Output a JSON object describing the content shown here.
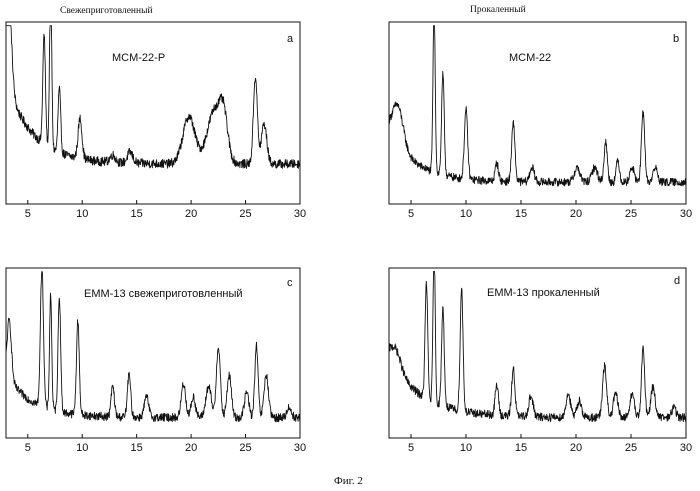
{
  "headers": {
    "fresh": "Свежеприготовленный",
    "calcined": "Прокаленный"
  },
  "figure_caption": "Фиг. 2",
  "colors": {
    "line": "#111111",
    "frame": "#111111",
    "background": "#ffffff"
  },
  "chart_data": [
    {
      "type": "line",
      "panel_letter": "a",
      "sample_label": "MCM-22-P",
      "xlim": [
        3,
        30
      ],
      "xticks": [
        5,
        10,
        15,
        20,
        25,
        30
      ],
      "xticks_text": [
        "5",
        "10",
        "15",
        "20",
        "25",
        "30"
      ],
      "baseline": 0.22,
      "start_intensity": 0.45,
      "decay_width": 2.5,
      "noise": 0.025,
      "peaks": [
        {
          "x": 3.2,
          "y": 0.58,
          "w": 0.28
        },
        {
          "x": 6.5,
          "y": 0.6,
          "w": 0.12
        },
        {
          "x": 7.1,
          "y": 0.9,
          "w": 0.1
        },
        {
          "x": 7.9,
          "y": 0.35,
          "w": 0.12
        },
        {
          "x": 9.8,
          "y": 0.22,
          "w": 0.18
        },
        {
          "x": 12.8,
          "y": 0.04,
          "w": 0.25
        },
        {
          "x": 14.4,
          "y": 0.06,
          "w": 0.25
        },
        {
          "x": 19.8,
          "y": 0.26,
          "w": 0.55
        },
        {
          "x": 22.2,
          "y": 0.3,
          "w": 0.7
        },
        {
          "x": 23.0,
          "y": 0.18,
          "w": 0.35
        },
        {
          "x": 25.9,
          "y": 0.48,
          "w": 0.18
        },
        {
          "x": 26.7,
          "y": 0.22,
          "w": 0.25
        }
      ]
    },
    {
      "type": "line",
      "panel_letter": "b",
      "sample_label": "MCM-22",
      "xlim": [
        3,
        30
      ],
      "xticks": [
        5,
        10,
        15,
        20,
        25,
        30
      ],
      "xticks_text": [
        "5",
        "10",
        "15",
        "20",
        "25",
        "30"
      ],
      "baseline": 0.12,
      "start_intensity": 0.28,
      "decay_width": 2.5,
      "noise": 0.022,
      "peaks": [
        {
          "x": 3.8,
          "y": 0.22,
          "w": 0.5
        },
        {
          "x": 7.1,
          "y": 0.92,
          "w": 0.1
        },
        {
          "x": 7.9,
          "y": 0.55,
          "w": 0.12
        },
        {
          "x": 10.0,
          "y": 0.38,
          "w": 0.15
        },
        {
          "x": 12.8,
          "y": 0.1,
          "w": 0.15
        },
        {
          "x": 14.3,
          "y": 0.32,
          "w": 0.15
        },
        {
          "x": 16.0,
          "y": 0.08,
          "w": 0.2
        },
        {
          "x": 20.1,
          "y": 0.08,
          "w": 0.25
        },
        {
          "x": 21.7,
          "y": 0.08,
          "w": 0.25
        },
        {
          "x": 22.7,
          "y": 0.22,
          "w": 0.15
        },
        {
          "x": 23.8,
          "y": 0.12,
          "w": 0.15
        },
        {
          "x": 25.1,
          "y": 0.08,
          "w": 0.2
        },
        {
          "x": 26.1,
          "y": 0.38,
          "w": 0.15
        },
        {
          "x": 27.2,
          "y": 0.08,
          "w": 0.2
        }
      ]
    },
    {
      "type": "line",
      "panel_letter": "c",
      "sample_label": "EMM-13 свежеприготовленный",
      "xlim": [
        3,
        30
      ],
      "xticks": [
        5,
        10,
        15,
        20,
        25,
        30
      ],
      "xticks_text": [
        "5",
        "10",
        "15",
        "20",
        "25",
        "30"
      ],
      "baseline": 0.12,
      "start_intensity": 0.25,
      "decay_width": 2.5,
      "noise": 0.025,
      "peaks": [
        {
          "x": 3.3,
          "y": 0.35,
          "w": 0.2
        },
        {
          "x": 6.3,
          "y": 0.82,
          "w": 0.14
        },
        {
          "x": 7.1,
          "y": 0.68,
          "w": 0.1
        },
        {
          "x": 7.9,
          "y": 0.68,
          "w": 0.12
        },
        {
          "x": 9.6,
          "y": 0.55,
          "w": 0.13
        },
        {
          "x": 12.8,
          "y": 0.18,
          "w": 0.15
        },
        {
          "x": 14.3,
          "y": 0.25,
          "w": 0.15
        },
        {
          "x": 15.9,
          "y": 0.12,
          "w": 0.2
        },
        {
          "x": 19.3,
          "y": 0.2,
          "w": 0.2
        },
        {
          "x": 20.2,
          "y": 0.12,
          "w": 0.2
        },
        {
          "x": 21.6,
          "y": 0.18,
          "w": 0.25
        },
        {
          "x": 22.5,
          "y": 0.42,
          "w": 0.18
        },
        {
          "x": 23.5,
          "y": 0.25,
          "w": 0.2
        },
        {
          "x": 25.1,
          "y": 0.15,
          "w": 0.2
        },
        {
          "x": 26.0,
          "y": 0.42,
          "w": 0.15
        },
        {
          "x": 26.9,
          "y": 0.25,
          "w": 0.2
        },
        {
          "x": 29.0,
          "y": 0.06,
          "w": 0.2
        }
      ]
    },
    {
      "type": "line",
      "panel_letter": "d",
      "sample_label": "EMM-13 прокаленный",
      "xlim": [
        3,
        30
      ],
      "xticks": [
        5,
        10,
        15,
        20,
        25,
        30
      ],
      "xticks_text": [
        "5",
        "10",
        "15",
        "20",
        "25",
        "30"
      ],
      "baseline": 0.12,
      "start_intensity": 0.35,
      "decay_width": 3.0,
      "noise": 0.025,
      "peaks": [
        {
          "x": 3.6,
          "y": 0.12,
          "w": 0.5
        },
        {
          "x": 6.4,
          "y": 0.68,
          "w": 0.12
        },
        {
          "x": 7.1,
          "y": 0.92,
          "w": 0.1
        },
        {
          "x": 7.9,
          "y": 0.58,
          "w": 0.12
        },
        {
          "x": 9.6,
          "y": 0.72,
          "w": 0.13
        },
        {
          "x": 12.8,
          "y": 0.18,
          "w": 0.15
        },
        {
          "x": 14.3,
          "y": 0.28,
          "w": 0.15
        },
        {
          "x": 15.9,
          "y": 0.12,
          "w": 0.2
        },
        {
          "x": 19.3,
          "y": 0.14,
          "w": 0.2
        },
        {
          "x": 20.3,
          "y": 0.1,
          "w": 0.2
        },
        {
          "x": 22.6,
          "y": 0.3,
          "w": 0.18
        },
        {
          "x": 23.6,
          "y": 0.14,
          "w": 0.2
        },
        {
          "x": 25.1,
          "y": 0.14,
          "w": 0.2
        },
        {
          "x": 26.1,
          "y": 0.4,
          "w": 0.15
        },
        {
          "x": 27.0,
          "y": 0.18,
          "w": 0.2
        },
        {
          "x": 28.9,
          "y": 0.06,
          "w": 0.2
        }
      ]
    }
  ]
}
